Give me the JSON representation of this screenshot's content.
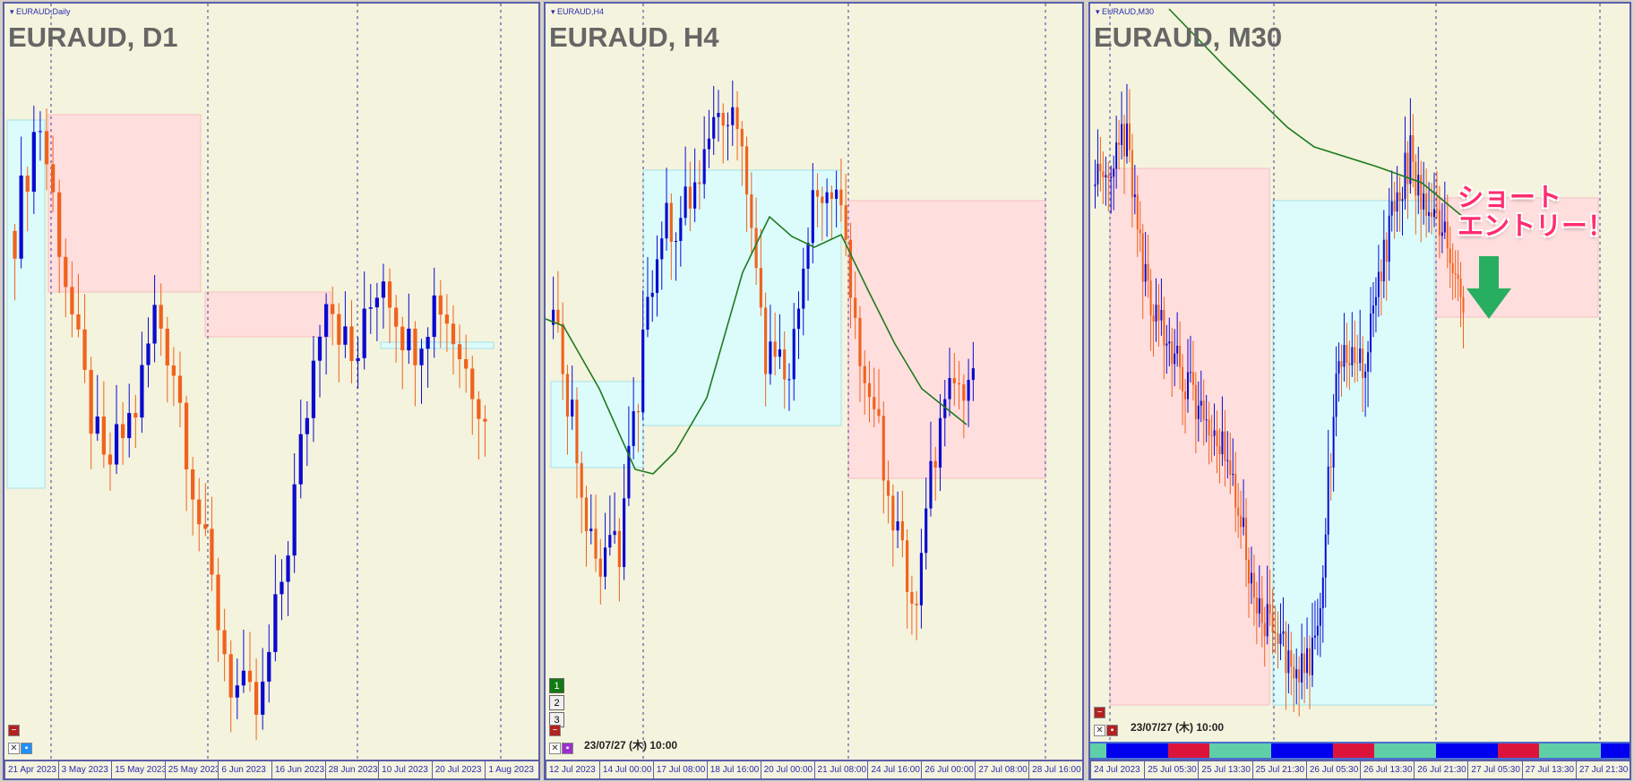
{
  "colors": {
    "bull": "#0a0ad0",
    "bear": "#f0621e",
    "ma": "#1f7a1f",
    "pink_zone": "#ffdede",
    "cyan_zone": "#dcfcfc",
    "arrow": "#27ae60"
  },
  "panels": [
    {
      "symbol_label": "EURAUD,Daily",
      "title": "EURAUD, D1",
      "axis_labels": [
        "21 Apr 2023",
        "3 May 2023",
        "15 May 2023",
        "25 May 2023",
        "6 Jun 2023",
        "16 Jun 2023",
        "28 Jun 2023",
        "10 Jul 2023",
        "20 Jul 2023",
        "1 Aug 2023"
      ],
      "candles": 75,
      "trend": [
        [
          0,
          75
        ],
        [
          0.05,
          92
        ],
        [
          0.08,
          80
        ],
        [
          0.14,
          55
        ],
        [
          0.19,
          40
        ],
        [
          0.26,
          50
        ],
        [
          0.3,
          64
        ],
        [
          0.34,
          55
        ],
        [
          0.4,
          30
        ],
        [
          0.46,
          10
        ],
        [
          0.52,
          5
        ],
        [
          0.58,
          30
        ],
        [
          0.66,
          68
        ],
        [
          0.72,
          55
        ],
        [
          0.78,
          70
        ],
        [
          0.84,
          58
        ],
        [
          0.9,
          66
        ],
        [
          0.96,
          55
        ],
        [
          1,
          50
        ]
      ]
    },
    {
      "symbol_label": "EURAUD,H4",
      "title": "EURAUD, H4",
      "datetime": "23/07/27 (木) 10:00",
      "axis_labels": [
        "12 Jul 2023",
        "14 Jul 00:00",
        "17 Jul 08:00",
        "18 Jul 16:00",
        "20 Jul 00:00",
        "21 Jul 08:00",
        "24 Jul 16:00",
        "26 Jul 00:00",
        "27 Jul 08:00",
        "28 Jul 16:00"
      ],
      "buttons": [
        "1",
        "2",
        "3"
      ],
      "candles": 90,
      "trend": [
        [
          0,
          55
        ],
        [
          0.05,
          40
        ],
        [
          0.1,
          18
        ],
        [
          0.16,
          22
        ],
        [
          0.2,
          45
        ],
        [
          0.26,
          70
        ],
        [
          0.33,
          72
        ],
        [
          0.4,
          88
        ],
        [
          0.45,
          85
        ],
        [
          0.5,
          50
        ],
        [
          0.56,
          48
        ],
        [
          0.62,
          75
        ],
        [
          0.67,
          78
        ],
        [
          0.72,
          55
        ],
        [
          0.8,
          30
        ],
        [
          0.86,
          14
        ],
        [
          0.93,
          45
        ],
        [
          1,
          48
        ]
      ]
    },
    {
      "symbol_label": "EURAUD,M30",
      "title": "EURAUD, M30",
      "datetime": "23/07/27 (木) 10:00",
      "axis_labels": [
        "24 Jul 2023",
        "25 Jul 05:30",
        "25 Jul 13:30",
        "25 Jul 21:30",
        "26 Jul 05:30",
        "26 Jul 13:30",
        "26 Jul 21:30",
        "27 Jul 05:30",
        "27 Jul 13:30",
        "27 Jul 21:30"
      ],
      "session_bar": [
        [
          "#5fcfa8",
          15
        ],
        [
          "#0000ee",
          58
        ],
        [
          "#dc143c",
          39
        ],
        [
          "#5fcfa8",
          58
        ],
        [
          "#0000ee",
          58
        ],
        [
          "#dc143c",
          39
        ],
        [
          "#5fcfa8",
          58
        ],
        [
          "#0000ee",
          58
        ],
        [
          "#dc143c",
          39
        ],
        [
          "#5fcfa8",
          58
        ],
        [
          "#0000ee",
          27
        ]
      ],
      "annotation": "ショート\nエントリー！",
      "candles": 140,
      "trend": [
        [
          0,
          80
        ],
        [
          0.08,
          88
        ],
        [
          0.14,
          65
        ],
        [
          0.25,
          50
        ],
        [
          0.35,
          40
        ],
        [
          0.45,
          15
        ],
        [
          0.55,
          8
        ],
        [
          0.6,
          10
        ],
        [
          0.66,
          55
        ],
        [
          0.72,
          52
        ],
        [
          0.8,
          75
        ],
        [
          0.86,
          85
        ],
        [
          0.9,
          75
        ],
        [
          0.94,
          72
        ],
        [
          1,
          64
        ]
      ]
    }
  ]
}
